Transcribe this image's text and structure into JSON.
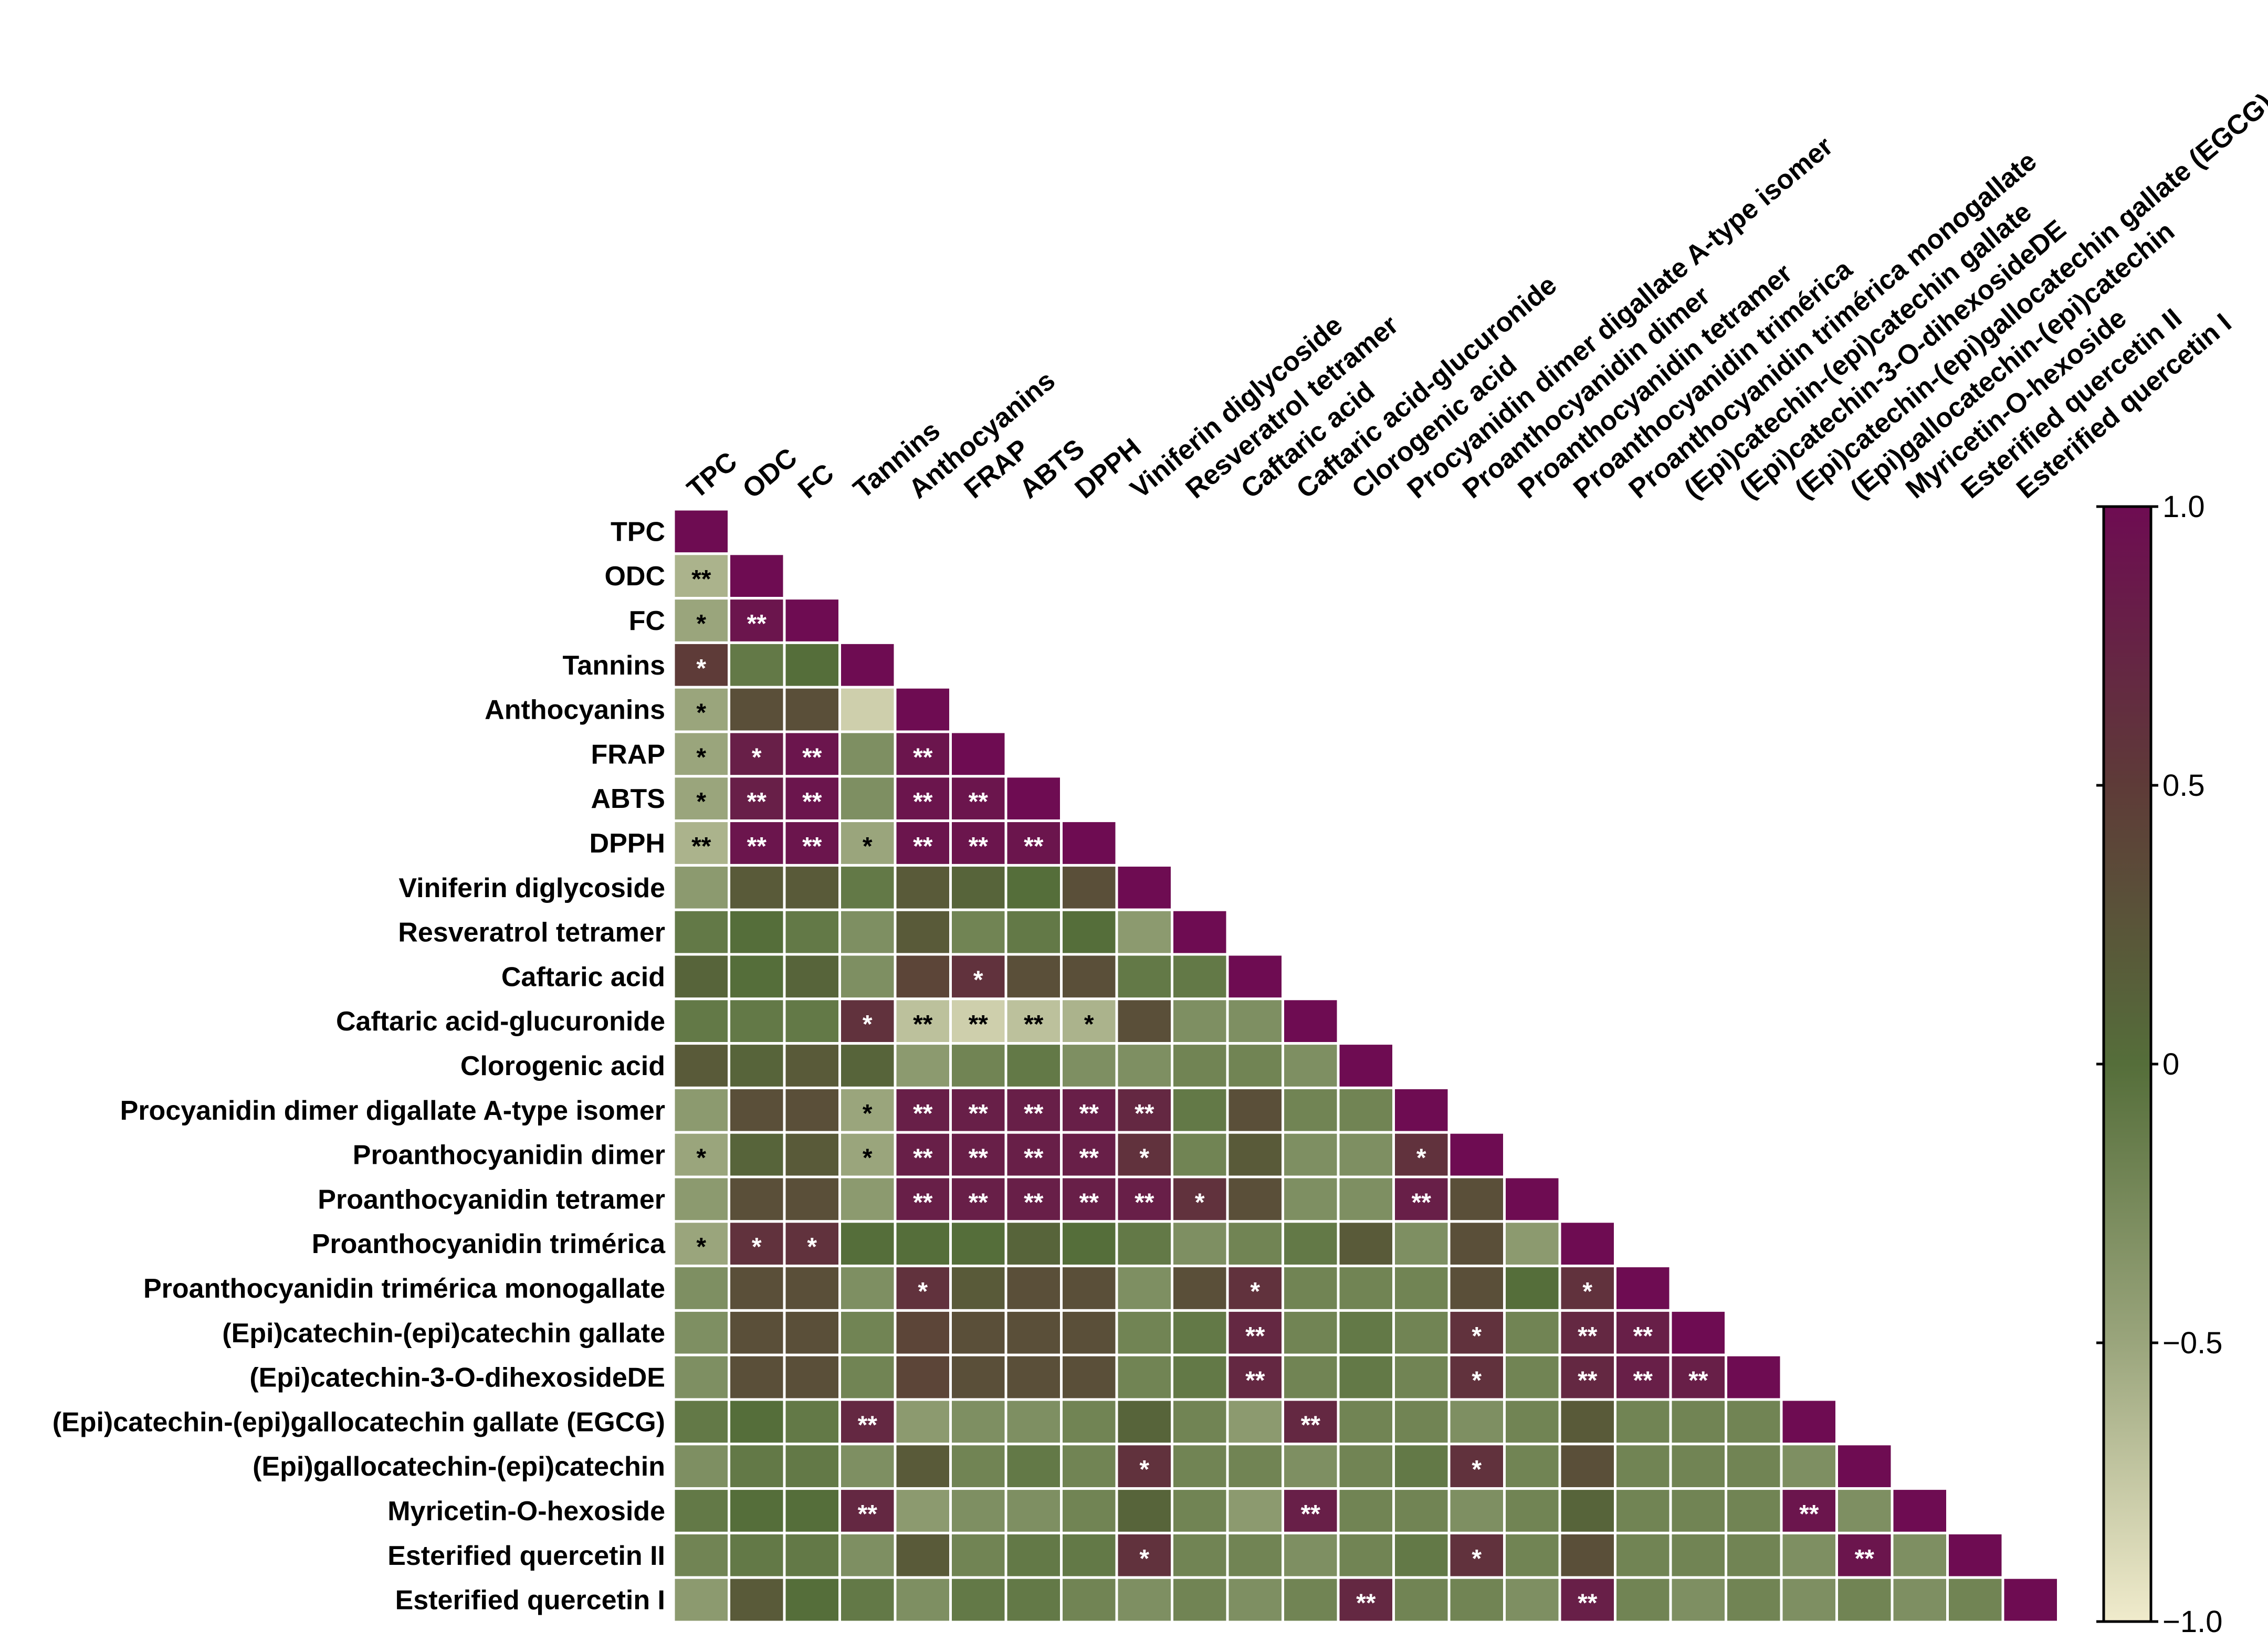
{
  "chart_data": {
    "type": "heatmap",
    "title": "",
    "variables": [
      "TPC",
      "ODC",
      "FC",
      "Tannins",
      "Anthocyanins",
      "FRAP",
      "ABTS",
      "DPPH",
      "Viniferin diglycoside",
      "Resveratrol tetramer",
      "Caftaric acid",
      "Caftaric acid-glucuronide",
      "Clorogenic acid",
      "Procyanidin dimer digallate A-type isomer",
      "Proanthocyanidin dimer",
      "Proanthocyanidin tetramer",
      "Proanthocyanidin trimérica",
      "Proanthocyanidin trimérica monogallate",
      "(Epi)catechin-(epi)catechin gallate",
      "(Epi)catechin-3-O-dihexosideDE",
      "(Epi)catechin-(epi)gallocatechin gallate (EGCG)",
      "(Epi)gallocatechin-(epi)catechin",
      "Myricetin-O-hexoside",
      "Esterified quercetin II",
      "Esterified quercetin I"
    ],
    "values": [
      [
        1.0
      ],
      [
        -0.6,
        1.0
      ],
      [
        -0.5,
        0.9,
        1.0
      ],
      [
        0.5,
        -0.1,
        0.0,
        1.0
      ],
      [
        -0.5,
        0.3,
        0.3,
        -0.8,
        1.0
      ],
      [
        -0.5,
        0.8,
        0.9,
        -0.3,
        0.9,
        1.0
      ],
      [
        -0.5,
        0.8,
        0.9,
        -0.3,
        0.9,
        0.9,
        1.0
      ],
      [
        -0.6,
        0.9,
        0.9,
        -0.5,
        0.9,
        0.9,
        0.9,
        1.0
      ],
      [
        -0.4,
        0.2,
        0.2,
        -0.1,
        0.2,
        0.1,
        0.0,
        0.3,
        1.0
      ],
      [
        -0.1,
        0.0,
        -0.1,
        -0.3,
        0.2,
        -0.2,
        -0.1,
        0.0,
        -0.4,
        1.0
      ],
      [
        0.1,
        0.0,
        0.1,
        -0.3,
        0.4,
        0.6,
        0.3,
        0.3,
        -0.1,
        -0.1,
        1.0
      ],
      [
        -0.1,
        -0.1,
        -0.1,
        0.6,
        -0.7,
        -0.8,
        -0.7,
        -0.6,
        0.3,
        -0.3,
        -0.3,
        1.0
      ],
      [
        0.2,
        0.1,
        0.2,
        0.1,
        -0.4,
        -0.2,
        -0.1,
        -0.3,
        -0.3,
        -0.2,
        -0.2,
        -0.3,
        1.0
      ],
      [
        -0.4,
        0.3,
        0.3,
        -0.5,
        0.8,
        0.8,
        0.8,
        0.8,
        0.7,
        -0.1,
        0.3,
        -0.2,
        -0.2,
        1.0
      ],
      [
        -0.5,
        0.1,
        0.2,
        -0.5,
        0.8,
        0.8,
        0.8,
        0.8,
        0.6,
        -0.2,
        0.2,
        -0.3,
        -0.3,
        0.6,
        1.0
      ],
      [
        -0.4,
        0.3,
        0.3,
        -0.4,
        0.8,
        0.8,
        0.8,
        0.8,
        0.8,
        0.6,
        0.3,
        -0.3,
        -0.3,
        0.8,
        0.3,
        1.0
      ],
      [
        -0.5,
        0.6,
        0.6,
        0.0,
        0.0,
        0.0,
        0.1,
        0.0,
        -0.1,
        -0.3,
        -0.2,
        -0.1,
        0.2,
        -0.3,
        0.3,
        -0.4,
        1.0
      ],
      [
        -0.3,
        0.3,
        0.3,
        -0.3,
        0.6,
        0.2,
        0.3,
        0.3,
        -0.3,
        0.3,
        0.6,
        -0.2,
        -0.2,
        -0.2,
        0.3,
        0.0,
        0.6,
        1.0
      ],
      [
        -0.3,
        0.3,
        0.3,
        -0.2,
        0.4,
        0.3,
        0.3,
        0.3,
        -0.2,
        -0.1,
        0.7,
        -0.2,
        -0.1,
        -0.2,
        0.6,
        -0.2,
        0.7,
        0.8,
        1.0
      ],
      [
        -0.3,
        0.3,
        0.3,
        -0.2,
        0.4,
        0.3,
        0.3,
        0.3,
        -0.2,
        -0.1,
        0.7,
        -0.2,
        -0.1,
        -0.2,
        0.6,
        -0.2,
        0.7,
        0.8,
        0.8,
        1.0
      ],
      [
        -0.1,
        0.0,
        -0.1,
        0.7,
        -0.4,
        -0.3,
        -0.3,
        -0.2,
        0.1,
        -0.2,
        -0.4,
        0.7,
        -0.2,
        -0.2,
        -0.3,
        -0.2,
        0.2,
        -0.2,
        -0.2,
        -0.2,
        1.0
      ],
      [
        -0.3,
        -0.1,
        -0.1,
        -0.3,
        0.2,
        -0.2,
        -0.1,
        -0.2,
        0.6,
        -0.2,
        -0.2,
        -0.3,
        -0.2,
        -0.1,
        0.6,
        -0.2,
        0.3,
        -0.2,
        -0.2,
        -0.2,
        -0.3,
        1.0
      ],
      [
        -0.1,
        0.0,
        0.0,
        0.7,
        -0.4,
        -0.3,
        -0.3,
        -0.2,
        0.1,
        -0.2,
        -0.4,
        0.8,
        -0.2,
        -0.2,
        -0.3,
        -0.2,
        0.1,
        -0.2,
        -0.2,
        -0.2,
        0.9,
        -0.3,
        1.0
      ],
      [
        -0.2,
        -0.1,
        -0.1,
        -0.3,
        0.2,
        -0.2,
        -0.1,
        -0.1,
        0.6,
        -0.2,
        -0.2,
        -0.3,
        -0.2,
        -0.1,
        0.6,
        -0.2,
        0.3,
        -0.2,
        -0.2,
        -0.2,
        -0.3,
        0.9,
        -0.3,
        1.0
      ],
      [
        -0.4,
        0.2,
        0.0,
        -0.1,
        -0.3,
        -0.1,
        -0.1,
        -0.2,
        -0.3,
        -0.2,
        -0.3,
        -0.2,
        0.7,
        -0.2,
        -0.2,
        -0.3,
        0.8,
        -0.2,
        -0.3,
        -0.2,
        -0.3,
        -0.2,
        -0.3,
        -0.2,
        1.0
      ]
    ],
    "significance": [
      [
        ""
      ],
      [
        "**",
        ""
      ],
      [
        "*",
        "**",
        ""
      ],
      [
        "*",
        "",
        "",
        ""
      ],
      [
        "*",
        "",
        "",
        "",
        ""
      ],
      [
        "*",
        "*",
        "**",
        "",
        "**",
        ""
      ],
      [
        "*",
        "**",
        "**",
        "",
        "**",
        "**",
        ""
      ],
      [
        "**",
        "**",
        "**",
        "*",
        "**",
        "**",
        "**",
        ""
      ],
      [
        "",
        "",
        "",
        "",
        "",
        "",
        "",
        "",
        ""
      ],
      [
        "",
        "",
        "",
        "",
        "",
        "",
        "",
        "",
        "",
        ""
      ],
      [
        "",
        "",
        "",
        "",
        "",
        "*",
        "",
        "",
        "",
        "",
        ""
      ],
      [
        "",
        "",
        "",
        "*",
        "**",
        "**",
        "**",
        "*",
        "",
        "",
        "",
        ""
      ],
      [
        "",
        "",
        "",
        "",
        "",
        "",
        "",
        "",
        "",
        "",
        "",
        "",
        ""
      ],
      [
        "",
        "",
        "",
        "*",
        "**",
        "**",
        "**",
        "**",
        "**",
        "",
        "",
        "",
        "",
        ""
      ],
      [
        "*",
        "",
        "",
        "*",
        "**",
        "**",
        "**",
        "**",
        "*",
        "",
        "",
        "",
        "",
        "*",
        ""
      ],
      [
        "",
        "",
        "",
        "",
        "**",
        "**",
        "**",
        "**",
        "**",
        "*",
        "",
        "",
        "",
        "**",
        "",
        ""
      ],
      [
        "*",
        "*",
        "*",
        "",
        "",
        "",
        "",
        "",
        "",
        "",
        "",
        "",
        "",
        "",
        "",
        "",
        ""
      ],
      [
        "",
        "",
        "",
        "",
        "*",
        "",
        "",
        "",
        "",
        "",
        "*",
        "",
        "",
        "",
        "",
        "",
        "*",
        ""
      ],
      [
        "",
        "",
        "",
        "",
        "",
        "",
        "",
        "",
        "",
        "",
        "**",
        "",
        "",
        "",
        "*",
        "",
        "**",
        "**",
        ""
      ],
      [
        "",
        "",
        "",
        "",
        "",
        "",
        "",
        "",
        "",
        "",
        "**",
        "",
        "",
        "",
        "*",
        "",
        "**",
        "**",
        "**",
        ""
      ],
      [
        "",
        "",
        "",
        "**",
        "",
        "",
        "",
        "",
        "",
        "",
        "",
        "**",
        "",
        "",
        "",
        "",
        "",
        "",
        "",
        "",
        ""
      ],
      [
        "",
        "",
        "",
        "",
        "",
        "",
        "",
        "",
        "*",
        "",
        "",
        "",
        "",
        "",
        "*",
        "",
        "",
        "",
        "",
        "",
        "",
        ""
      ],
      [
        "",
        "",
        "",
        "**",
        "",
        "",
        "",
        "",
        "",
        "",
        "",
        "**",
        "",
        "",
        "",
        "",
        "",
        "",
        "",
        "",
        "**",
        "",
        ""
      ],
      [
        "",
        "",
        "",
        "",
        "",
        "",
        "",
        "",
        "*",
        "",
        "",
        "",
        "",
        "",
        "*",
        "",
        "",
        "",
        "",
        "",
        "",
        "**",
        "",
        ""
      ],
      [
        "",
        "",
        "",
        "",
        "",
        "",
        "",
        "",
        "",
        "",
        "",
        "",
        "**",
        "",
        "",
        "",
        "**",
        "",
        "",
        "",
        "",
        "",
        "",
        "",
        ""
      ]
    ],
    "colorbar": {
      "range": [
        -1.0,
        1.0
      ],
      "tick_labels": [
        "1.0",
        "0.5",
        "0",
        "−0.5",
        "−1.0"
      ],
      "tick_values": [
        1.0,
        0.5,
        0,
        -0.5,
        -1.0
      ],
      "colors": [
        "#f0ebcc",
        "#9aa57c",
        "#556e3a",
        "#5e3b38",
        "#6e0c52"
      ]
    }
  }
}
